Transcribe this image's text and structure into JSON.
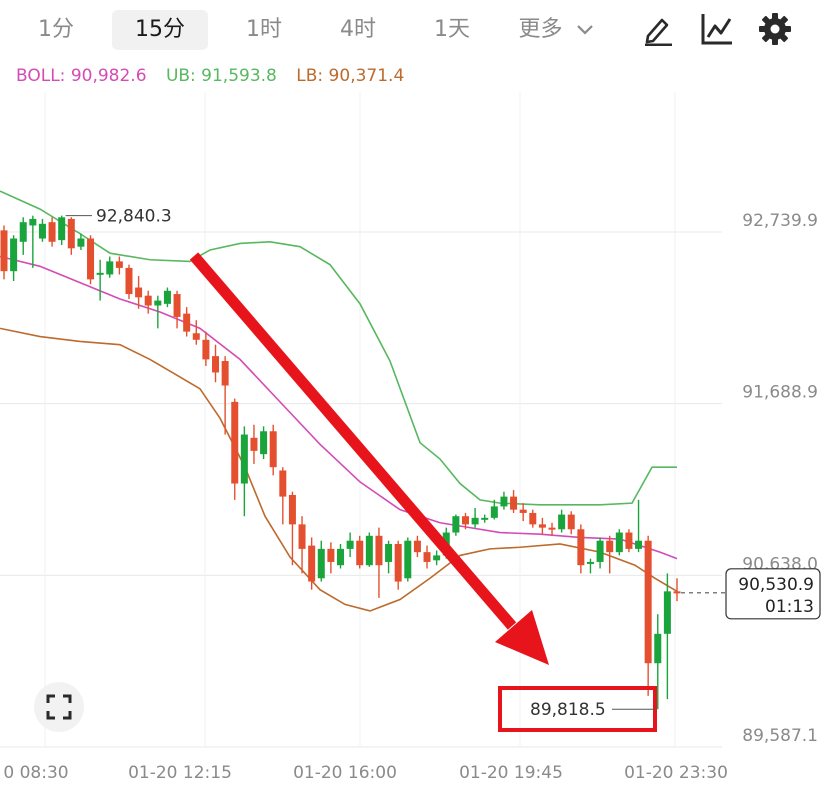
{
  "toolbar": {
    "timeframes": [
      {
        "label": "1分",
        "active": false
      },
      {
        "label": "15分",
        "active": true
      },
      {
        "label": "1时",
        "active": false
      },
      {
        "label": "4时",
        "active": false
      },
      {
        "label": "1天",
        "active": false
      }
    ],
    "more_label": "更多",
    "icons": [
      "draw-pen-icon",
      "indicator-chart-icon",
      "gear-icon",
      "chevron-down-icon"
    ]
  },
  "legend": {
    "boll": "BOLL: 90,982.6",
    "ub": "UB: 91,593.8",
    "lb": "LB: 90,371.4"
  },
  "colors": {
    "up": "#1aa43c",
    "down": "#e4502f",
    "boll": "#d44bb5",
    "ub": "#57b860",
    "lb": "#bd6a2d",
    "grid": "#e8e8e8",
    "annotation": "#e8141b"
  },
  "chart_data": {
    "type": "candlestick",
    "y_ticks": [
      "92,739.9",
      "91,688.9",
      "90,638.0",
      "89,587.1"
    ],
    "y_tick_values": [
      92739.9,
      91688.9,
      90638.0,
      89587.1
    ],
    "ylim": [
      89587.1,
      93500
    ],
    "x_ticks": [
      "0 08:30",
      "01-20 12:15",
      "01-20 16:00",
      "01-20 19:45",
      "01-20 23:30"
    ],
    "high_label": "92,840.3",
    "low_label": "89,818.5",
    "last_price": "90,530.9",
    "countdown": "01:13",
    "candles": [
      [
        92750,
        92500,
        92780,
        92450
      ],
      [
        92500,
        92700,
        92720,
        92440
      ],
      [
        92680,
        92800,
        92830,
        92600
      ],
      [
        92780,
        92820,
        92840,
        92520
      ],
      [
        92700,
        92790,
        92820,
        92680
      ],
      [
        92800,
        92680,
        92830,
        92650
      ],
      [
        92690,
        92830,
        92840.3,
        92660
      ],
      [
        92820,
        92640,
        92830,
        92600
      ],
      [
        92650,
        92700,
        92730,
        92630
      ],
      [
        92700,
        92450,
        92720,
        92420
      ],
      [
        92480,
        92490,
        92570,
        92320
      ],
      [
        92480,
        92560,
        92590,
        92460
      ],
      [
        92560,
        92520,
        92590,
        92480
      ],
      [
        92520,
        92360,
        92540,
        92330
      ],
      [
        92400,
        92340,
        92470,
        92270
      ],
      [
        92350,
        92290,
        92380,
        92240
      ],
      [
        92290,
        92320,
        92350,
        92150
      ],
      [
        92300,
        92380,
        92400,
        92280
      ],
      [
        92360,
        92220,
        92380,
        92150
      ],
      [
        92240,
        92130,
        92280,
        92100
      ],
      [
        92120,
        92080,
        92200,
        92050
      ],
      [
        92080,
        91960,
        92130,
        91920
      ],
      [
        91980,
        91880,
        92050,
        91820
      ],
      [
        91950,
        91800,
        91980,
        91500
      ],
      [
        91700,
        91200,
        91720,
        91100
      ],
      [
        91200,
        91500,
        91550,
        91000
      ],
      [
        91480,
        91400,
        91560,
        91320
      ],
      [
        91380,
        91520,
        91550,
        91350
      ],
      [
        91520,
        91300,
        91560,
        91250
      ],
      [
        91280,
        91120,
        91300,
        90950
      ],
      [
        91130,
        90950,
        91150,
        90700
      ],
      [
        90950,
        90800,
        91000,
        90650
      ],
      [
        90820,
        90600,
        90870,
        90550
      ],
      [
        90620,
        90800,
        90850,
        90600
      ],
      [
        90800,
        90720,
        90840,
        90650
      ],
      [
        90700,
        90800,
        90830,
        90680
      ],
      [
        90800,
        90850,
        90900,
        90750
      ],
      [
        90850,
        90700,
        90880,
        90680
      ],
      [
        90700,
        90880,
        90900,
        90690
      ],
      [
        90880,
        90700,
        90930,
        90500
      ],
      [
        90720,
        90830,
        90850,
        90650
      ],
      [
        90830,
        90600,
        90850,
        90550
      ],
      [
        90620,
        90850,
        90870,
        90600
      ],
      [
        90850,
        90780,
        90880,
        90750
      ],
      [
        90780,
        90720,
        90820,
        90680
      ],
      [
        90730,
        90760,
        90790,
        90700
      ],
      [
        90760,
        90900,
        90930,
        90740
      ],
      [
        90900,
        91000,
        91010,
        90880
      ],
      [
        91000,
        90950,
        91020,
        90920
      ],
      [
        90950,
        90990,
        91050,
        90930
      ],
      [
        90990,
        90990,
        91010,
        90960
      ],
      [
        90990,
        91060,
        91100,
        90980
      ],
      [
        91060,
        91120,
        91150,
        91040
      ],
      [
        91120,
        91040,
        91160,
        91020
      ],
      [
        91040,
        91020,
        91080,
        90970
      ],
      [
        91020,
        90950,
        91040,
        90930
      ],
      [
        90950,
        90930,
        90990,
        90890
      ],
      [
        90930,
        90920,
        90960,
        90880
      ],
      [
        90920,
        91010,
        91040,
        90900
      ],
      [
        91010,
        90920,
        91030,
        90890
      ],
      [
        90920,
        90700,
        90950,
        90650
      ],
      [
        90720,
        90720,
        90740,
        90650
      ],
      [
        90720,
        90850,
        90870,
        90680
      ],
      [
        90850,
        90780,
        90880,
        90650
      ],
      [
        90780,
        90900,
        90920,
        90760
      ],
      [
        90900,
        90800,
        90920,
        90780
      ],
      [
        90800,
        90850,
        91100,
        90780
      ],
      [
        90850,
        90100,
        90880,
        89900
      ],
      [
        90100,
        90280,
        90400,
        89818.5
      ],
      [
        90280,
        90540,
        90650,
        89880
      ],
      [
        90540,
        90530.9,
        90620,
        90480
      ]
    ],
    "boll": [
      [
        0,
        92590
      ],
      [
        40,
        92530
      ],
      [
        80,
        92430
      ],
      [
        120,
        92330
      ],
      [
        160,
        92250
      ],
      [
        200,
        92150
      ],
      [
        240,
        91960
      ],
      [
        280,
        91700
      ],
      [
        320,
        91440
      ],
      [
        360,
        91210
      ],
      [
        400,
        91040
      ],
      [
        440,
        90960
      ],
      [
        470,
        90930
      ],
      [
        500,
        90900
      ],
      [
        540,
        90890
      ],
      [
        580,
        90870
      ],
      [
        620,
        90860
      ],
      [
        660,
        90780
      ],
      [
        677,
        90740
      ]
    ],
    "ub": [
      [
        0,
        92990
      ],
      [
        40,
        92880
      ],
      [
        80,
        92730
      ],
      [
        110,
        92610
      ],
      [
        150,
        92570
      ],
      [
        190,
        92560
      ],
      [
        210,
        92630
      ],
      [
        240,
        92670
      ],
      [
        270,
        92680
      ],
      [
        300,
        92650
      ],
      [
        330,
        92540
      ],
      [
        360,
        92300
      ],
      [
        390,
        91950
      ],
      [
        420,
        91450
      ],
      [
        440,
        91350
      ],
      [
        460,
        91200
      ],
      [
        480,
        91100
      ],
      [
        500,
        91080
      ],
      [
        540,
        91070
      ],
      [
        600,
        91070
      ],
      [
        632,
        91080
      ],
      [
        652,
        91300
      ],
      [
        677,
        91300
      ]
    ],
    "lb": [
      [
        0,
        92150
      ],
      [
        40,
        92100
      ],
      [
        80,
        92070
      ],
      [
        120,
        92050
      ],
      [
        150,
        91960
      ],
      [
        175,
        91870
      ],
      [
        200,
        91780
      ],
      [
        220,
        91600
      ],
      [
        245,
        91300
      ],
      [
        265,
        91000
      ],
      [
        290,
        90750
      ],
      [
        320,
        90550
      ],
      [
        345,
        90460
      ],
      [
        370,
        90420
      ],
      [
        400,
        90490
      ],
      [
        430,
        90620
      ],
      [
        460,
        90760
      ],
      [
        490,
        90800
      ],
      [
        520,
        90810
      ],
      [
        560,
        90830
      ],
      [
        600,
        90780
      ],
      [
        635,
        90700
      ],
      [
        655,
        90620
      ],
      [
        677,
        90540
      ]
    ]
  }
}
